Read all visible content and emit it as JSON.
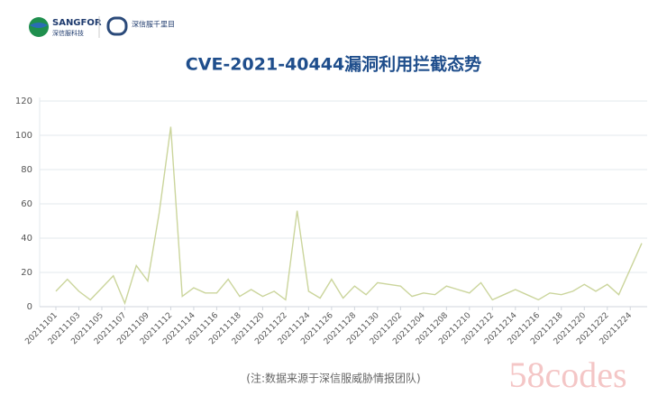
{
  "chart_data": {
    "type": "line",
    "title": "CVE-2021-40444漏洞利用拦截态势",
    "brand": [
      "SANGFOR",
      "深信服科技",
      "深信服千里目"
    ],
    "note": "(注:数据来源于深信服威胁情报团队)",
    "watermark": "58codes",
    "categories": [
      "20211101",
      null,
      "20211103",
      null,
      "20211105",
      null,
      "20211107",
      null,
      "20211109",
      null,
      "20211112",
      null,
      "20211114",
      null,
      "20211116",
      null,
      "20211118",
      null,
      "20211120",
      null,
      "20211122",
      null,
      "20211124",
      null,
      "20211126",
      null,
      "20211128",
      null,
      "20211130",
      null,
      "20211202",
      null,
      "20211204",
      null,
      "20211208",
      null,
      "20211210",
      null,
      "20211212",
      null,
      "20211214",
      null,
      "20211216",
      null,
      "20211218",
      null,
      "20211220",
      null,
      "20211222",
      null,
      "20211224",
      null
    ],
    "values": [
      9,
      16,
      9,
      4,
      11,
      18,
      2,
      24,
      15,
      55,
      105,
      6,
      11,
      8,
      8,
      16,
      6,
      10,
      6,
      9,
      4,
      56,
      9,
      5,
      16,
      5,
      12,
      7,
      14,
      13,
      12,
      6,
      8,
      7,
      12,
      10,
      8,
      14,
      4,
      7,
      10,
      7,
      4,
      8,
      7,
      9,
      13,
      9,
      13,
      7,
      22,
      37
    ],
    "color": "#cbd59c",
    "ylim": [
      0,
      120
    ],
    "yticks": [
      0,
      20,
      40,
      60,
      80,
      100,
      120
    ],
    "grid": true
  }
}
